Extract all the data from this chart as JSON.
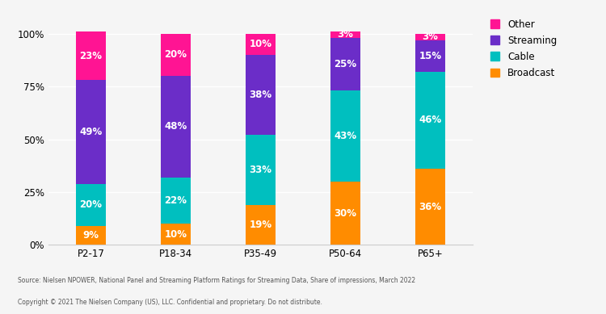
{
  "categories": [
    "P2-17",
    "P18-34",
    "P35-49",
    "P50-64",
    "P65+"
  ],
  "broadcast": [
    9,
    10,
    19,
    30,
    36
  ],
  "cable": [
    20,
    22,
    33,
    43,
    46
  ],
  "streaming": [
    49,
    48,
    38,
    25,
    15
  ],
  "other": [
    23,
    20,
    10,
    3,
    3
  ],
  "colors": {
    "broadcast": "#FF8C00",
    "cable": "#00BFBF",
    "streaming": "#6B2DC8",
    "other": "#FF1493"
  },
  "legend_labels": [
    "Other",
    "Streaming",
    "Cable",
    "Broadcast"
  ],
  "source_text": "Source: Nielsen NPOWER, National Panel and Streaming Platform Ratings for Streaming Data, Share of impressions, March 2022",
  "copyright_text": "Copyright © 2021 The Nielsen Company (US), LLC. Confidential and proprietary. Do not distribute.",
  "bg_color": "#F5F5F5",
  "plot_bg_color": "#F5F5F5",
  "bar_width": 0.35,
  "label_fontsize": 8.5,
  "tick_fontsize": 8.5
}
